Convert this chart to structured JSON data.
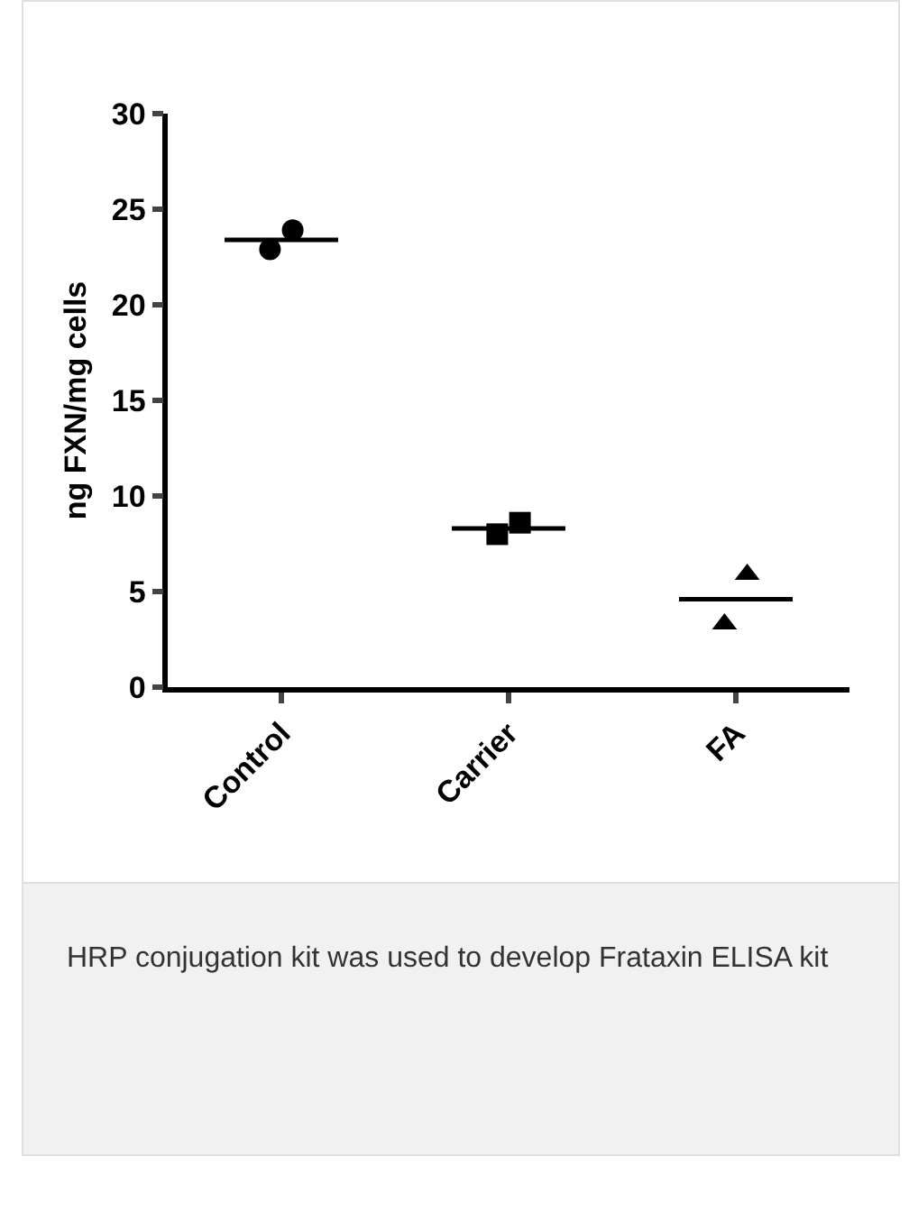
{
  "chart_data": {
    "type": "scatter",
    "ylabel": "ng FXN/mg cells",
    "categories": [
      "Control",
      "Carrier",
      "FA"
    ],
    "series": [
      {
        "marker": "circle",
        "color": "#000000",
        "x": [
          "Control",
          "Control"
        ],
        "values": [
          22.9,
          23.9
        ]
      },
      {
        "marker": "square",
        "color": "#000000",
        "x": [
          "Carrier",
          "Carrier"
        ],
        "values": [
          8.0,
          8.6
        ]
      },
      {
        "marker": "triangle",
        "color": "#000000",
        "x": [
          "FA",
          "FA"
        ],
        "values": [
          3.3,
          5.9
        ]
      },
      {
        "type": "box",
        "color": "#000000",
        "boxes": [
          {
            "low": 23.4,
            "q1": 23.4,
            "median": 23.4,
            "q3": 23.4,
            "high": 23.4
          },
          {
            "low": 8.3,
            "q1": 8.3,
            "median": 8.3,
            "q3": 8.3,
            "high": 8.3
          },
          {
            "low": 4.6,
            "q1": 4.6,
            "median": 4.6,
            "q3": 4.6,
            "high": 4.6
          }
        ]
      }
    ],
    "ylim": [
      0,
      30
    ],
    "yticks": [
      0,
      5,
      10,
      15,
      20,
      25,
      30
    ],
    "grid": false,
    "annotations": [
      "HRP conjugation kit was used to develop Frataxin ELISA kit"
    ]
  }
}
